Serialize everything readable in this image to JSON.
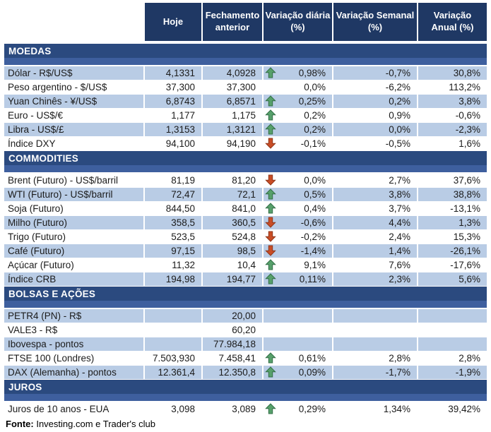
{
  "colors": {
    "navy": "#1F3864",
    "section_top": "#2B4A7F",
    "section_strip": "#3E5F9E",
    "row_blue": "#B9CCE5",
    "arrow_green": "#57A06B",
    "arrow_green_stroke": "#336F47",
    "arrow_red": "#C94D26",
    "arrow_red_stroke": "#8F3619"
  },
  "header": {
    "columns": [
      "Hoje",
      "Fechamento\nanterior",
      "Variação diária\n(%)",
      "Variação Semanal\n(%)",
      "Variação\nAnual (%)"
    ]
  },
  "sections": [
    {
      "title": "MOEDAS",
      "rows": [
        {
          "label": "Dólar - R$/US$",
          "hoje": "4,1331",
          "fechamento": "4,0928",
          "arrow": "up",
          "var_diaria": "0,98%",
          "var_semanal": "-0,7%",
          "var_anual": "30,8%"
        },
        {
          "label": "Peso argentino - $/US$",
          "hoje": "37,300",
          "fechamento": "37,300",
          "arrow": null,
          "var_diaria": "0,0%",
          "var_semanal": "-6,2%",
          "var_anual": "113,2%"
        },
        {
          "label": "Yuan Chinês - ¥/US$",
          "hoje": "6,8743",
          "fechamento": "6,8571",
          "arrow": "up",
          "var_diaria": "0,25%",
          "var_semanal": "0,2%",
          "var_anual": "3,8%"
        },
        {
          "label": "Euro - US$/€",
          "hoje": "1,177",
          "fechamento": "1,175",
          "arrow": "up",
          "var_diaria": "0,2%",
          "var_semanal": "0,9%",
          "var_anual": "-0,6%"
        },
        {
          "label": "Libra - US$/£",
          "hoje": "1,3153",
          "fechamento": "1,3121",
          "arrow": "up",
          "var_diaria": "0,2%",
          "var_semanal": "0,0%",
          "var_anual": "-2,3%"
        },
        {
          "label": "Índice DXY",
          "hoje": "94,100",
          "fechamento": "94,190",
          "arrow": "down",
          "var_diaria": "-0,1%",
          "var_semanal": "-0,5%",
          "var_anual": "1,6%"
        }
      ]
    },
    {
      "title": "COMMODITIES",
      "rows": [
        {
          "label": "Brent (Futuro) - US$/barril",
          "hoje": "81,19",
          "fechamento": "81,20",
          "arrow": "down",
          "var_diaria": "0,0%",
          "var_semanal": "2,7%",
          "var_anual": "37,6%"
        },
        {
          "label": "WTI (Futuro) - US$/barril",
          "hoje": "72,47",
          "fechamento": "72,1",
          "arrow": "up",
          "var_diaria": "0,5%",
          "var_semanal": "3,8%",
          "var_anual": "38,8%"
        },
        {
          "label": "Soja (Futuro)",
          "hoje": "844,50",
          "fechamento": "841,0",
          "arrow": "up",
          "var_diaria": "0,4%",
          "var_semanal": "3,7%",
          "var_anual": "-13,1%"
        },
        {
          "label": "Milho (Futuro)",
          "hoje": "358,5",
          "fechamento": "360,5",
          "arrow": "down",
          "var_diaria": "-0,6%",
          "var_semanal": "4,4%",
          "var_anual": "1,3%"
        },
        {
          "label": "Trigo (Futuro)",
          "hoje": "523,5",
          "fechamento": "524,8",
          "arrow": "down",
          "var_diaria": "-0,2%",
          "var_semanal": "2,4%",
          "var_anual": "15,3%"
        },
        {
          "label": "Café (Futuro)",
          "hoje": "97,15",
          "fechamento": "98,5",
          "arrow": "down",
          "var_diaria": "-1,4%",
          "var_semanal": "1,4%",
          "var_anual": "-26,1%"
        },
        {
          "label": "Açúcar (Futuro)",
          "hoje": "11,32",
          "fechamento": "10,4",
          "arrow": "up",
          "var_diaria": "9,1%",
          "var_semanal": "7,6%",
          "var_anual": "-17,6%"
        },
        {
          "label": "Índice CRB",
          "hoje": "194,98",
          "fechamento": "194,77",
          "arrow": "up",
          "var_diaria": "0,11%",
          "var_semanal": "2,3%",
          "var_anual": "5,6%"
        }
      ]
    },
    {
      "title": "BOLSAS E AÇÕES",
      "rows": [
        {
          "label": "PETR4 (PN) - R$",
          "hoje": "",
          "fechamento": "20,00",
          "arrow": null,
          "var_diaria": "",
          "var_semanal": "",
          "var_anual": ""
        },
        {
          "label": "VALE3 - R$",
          "hoje": "",
          "fechamento": "60,20",
          "arrow": null,
          "var_diaria": "",
          "var_semanal": "",
          "var_anual": ""
        },
        {
          "label": "Ibovespa - pontos",
          "hoje": "",
          "fechamento": "77.984,18",
          "arrow": null,
          "var_diaria": "",
          "var_semanal": "",
          "var_anual": ""
        },
        {
          "label": "FTSE 100 (Londres)",
          "hoje": "7.503,930",
          "fechamento": "7.458,41",
          "arrow": "up",
          "var_diaria": "0,61%",
          "var_semanal": "2,8%",
          "var_anual": "2,8%"
        },
        {
          "label": "DAX (Alemanha) - pontos",
          "hoje": "12.361,4",
          "fechamento": "12.350,8",
          "arrow": "up",
          "var_diaria": "0,09%",
          "var_semanal": "-1,7%",
          "var_anual": "-1,9%"
        }
      ]
    },
    {
      "title": "JUROS",
      "rows": [
        {
          "label": "Juros de 10 anos - EUA",
          "hoje": "3,098",
          "fechamento": "3,089",
          "arrow": "up",
          "var_diaria": "0,29%",
          "var_semanal": "1,34%",
          "var_anual": "39,42%"
        }
      ]
    }
  ],
  "footer": {
    "label": "Fonte:",
    "text": " Investing.com e Trader's club"
  },
  "icons": {
    "up": "up-arrow-icon",
    "down": "down-arrow-icon"
  }
}
